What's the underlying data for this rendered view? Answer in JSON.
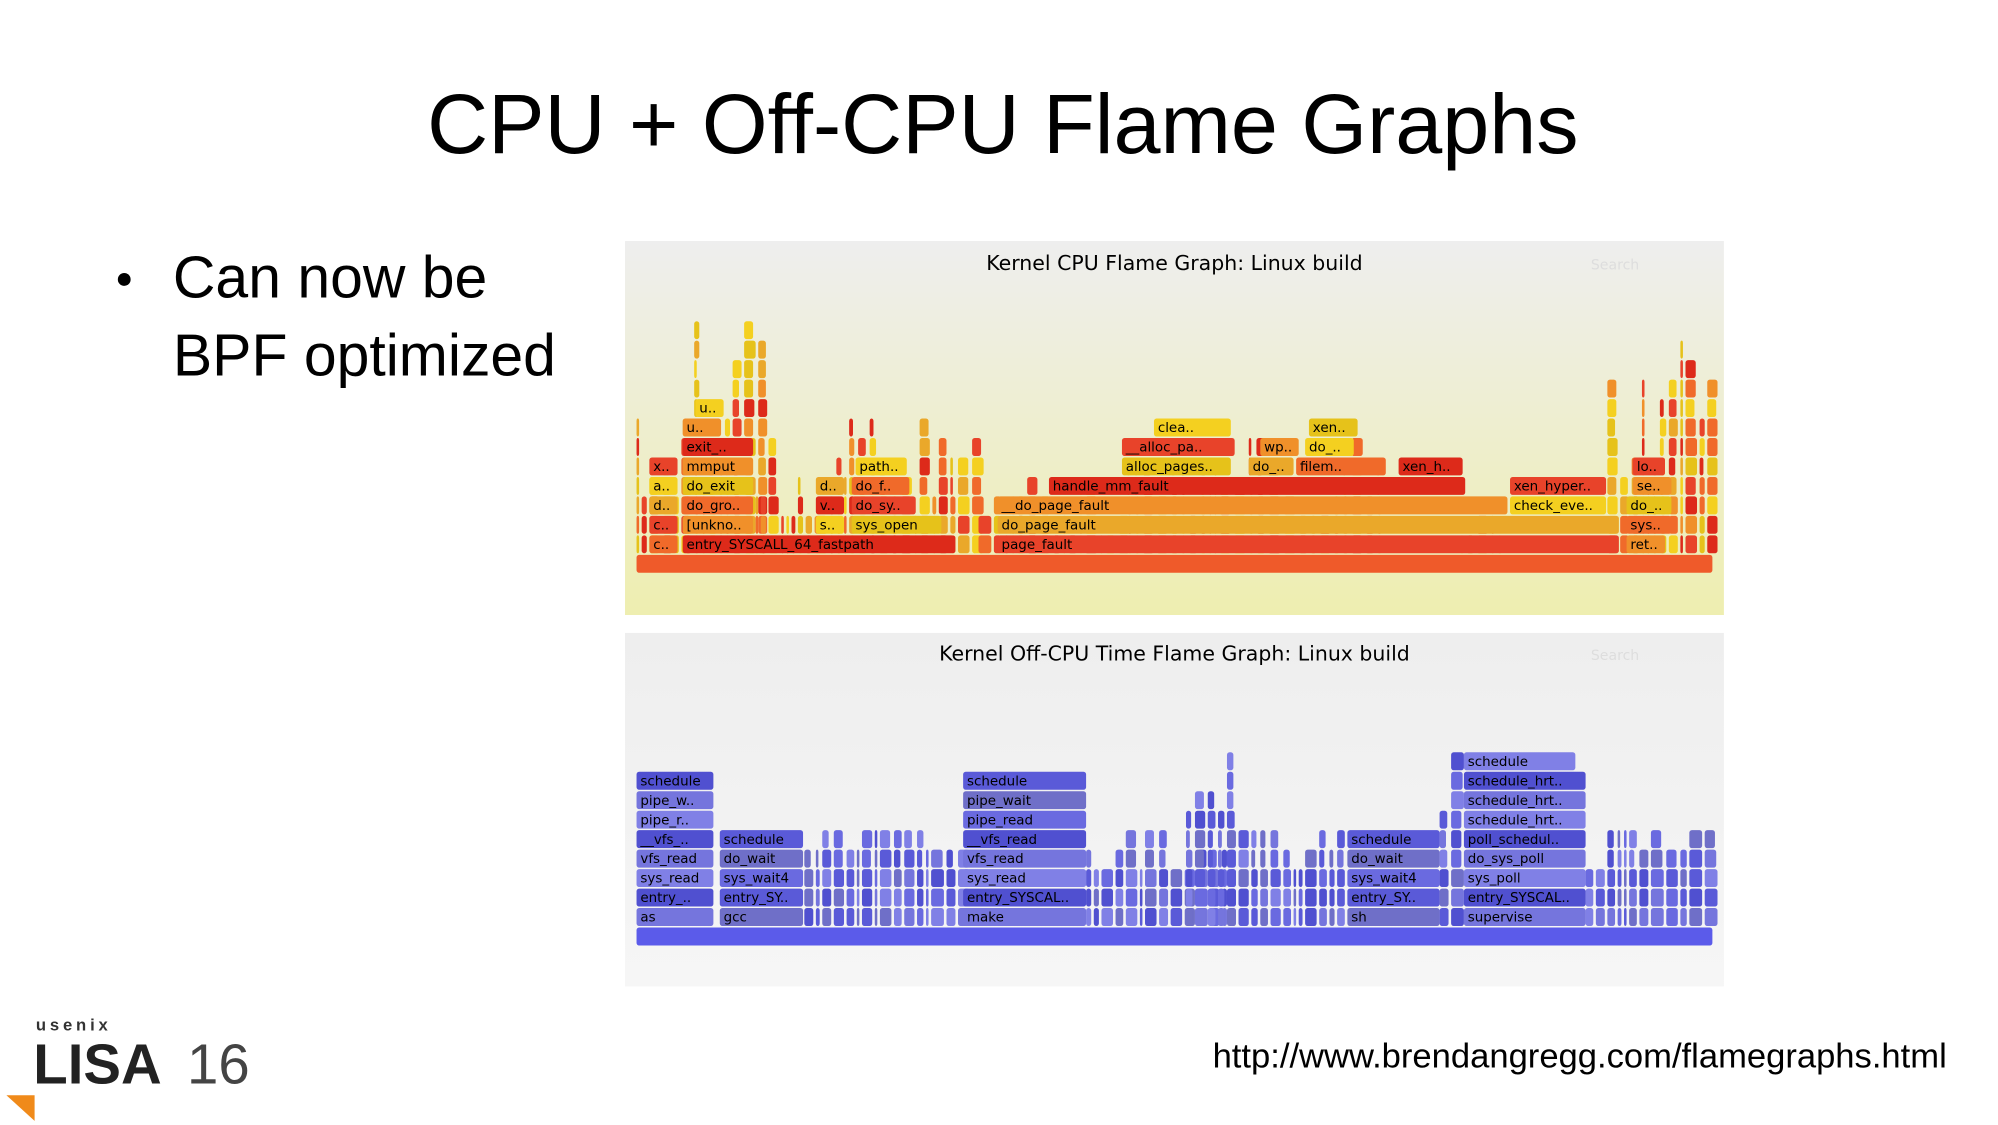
{
  "slide": {
    "title": "CPU + Off-CPU Flame Graphs",
    "bullet": [
      "Can now be",
      "BPF optimized"
    ],
    "url": "http://www.brendangregg.com/flamegraphs.html"
  },
  "logo": {
    "org": "usenix",
    "name": "LISA",
    "edition": "16"
  },
  "cpu_graph": {
    "title": "Kernel CPU Flame Graph: Linux build",
    "search": "Search",
    "frames": [
      "c..",
      "entry_SYSCALL_64_fastpath",
      "page_fault",
      "ret..",
      "c..",
      "[unkno..",
      "s..",
      "sys_open",
      "do_page_fault",
      "sys..",
      "d..",
      "do_gro..",
      "v..",
      "do_sy..",
      "__do_page_fault",
      "check_eve..",
      "do_..",
      "a..",
      "do_exit",
      "d..",
      "do_f..",
      "handle_mm_fault",
      "xen_hyper..",
      "se..",
      "x..",
      "mmput",
      "path..",
      "alloc_pages..",
      "do_..",
      "filem..",
      "xen_h..",
      "lo..",
      "exit_..",
      "__alloc_pa..",
      "wp..",
      "do_..",
      "u..",
      "clea..",
      "xen..",
      "u.."
    ]
  },
  "offcpu_graph": {
    "title": "Kernel Off-CPU Time Flame Graph: Linux build",
    "search": "Search",
    "frames": [
      "as",
      "gcc",
      "make",
      "sh",
      "supervise",
      "entry_..",
      "entry_SY..",
      "entry_SYSCAL..",
      "entry_SY..",
      "entry_SYSCAL..",
      "sys_read",
      "sys_wait4",
      "sys_read",
      "sys_wait4",
      "sys_poll",
      "vfs_read",
      "do_wait",
      "vfs_read",
      "do_wait",
      "do_sys_poll",
      "__vfs_..",
      "schedule",
      "__vfs_read",
      "schedule",
      "poll_schedul..",
      "pipe_r..",
      "pipe_read",
      "schedule_hrt..",
      "pipe_w..",
      "pipe_wait",
      "schedule_hrt..",
      "schedule",
      "schedule",
      "schedule_hrt..",
      "schedule"
    ]
  }
}
